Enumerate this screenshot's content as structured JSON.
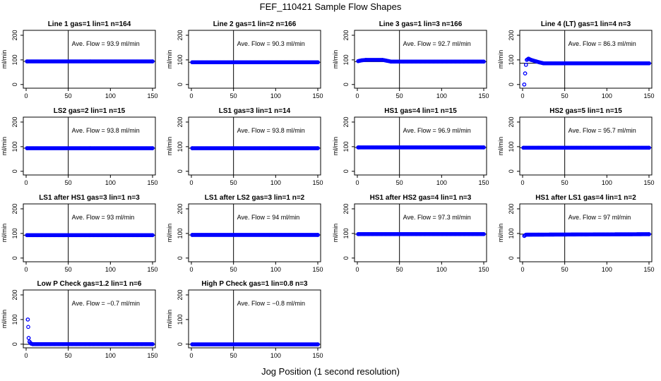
{
  "figure": {
    "title": "FEF_110421  Sample Flow Shapes",
    "xlabel": "Jog Position (1 second resolution)",
    "point_color": "#0000ff",
    "line_color": "#000000"
  },
  "chart_data": [
    {
      "type": "scatter",
      "title": "Line 1 gas=1 lin=1 n=164",
      "ylabel": "ml/min",
      "xlim": [
        0,
        150
      ],
      "ylim": [
        -15,
        220
      ],
      "xticks": [
        0,
        50,
        100,
        150
      ],
      "yticks": [
        0,
        100,
        200
      ],
      "hline": 93.9,
      "vline": 50,
      "annotation": "Ave. Flow =  93.9  ml/min",
      "x": [
        1,
        150
      ],
      "y": [
        93.9,
        93.9
      ]
    },
    {
      "type": "scatter",
      "title": "Line 2 gas=1 lin=2 n=166",
      "ylabel": "ml/min",
      "xlim": [
        0,
        150
      ],
      "ylim": [
        -15,
        220
      ],
      "xticks": [
        0,
        50,
        100,
        150
      ],
      "yticks": [
        0,
        100,
        200
      ],
      "hline": 90.3,
      "vline": 50,
      "annotation": "Ave. Flow =  90.3  ml/min",
      "x": [
        1,
        150
      ],
      "y": [
        90.3,
        90.3
      ]
    },
    {
      "type": "scatter",
      "title": "Line 3 gas=1 lin=3 n=166",
      "ylabel": "ml/min",
      "xlim": [
        0,
        150
      ],
      "ylim": [
        -15,
        220
      ],
      "xticks": [
        0,
        50,
        100,
        150
      ],
      "yticks": [
        0,
        100,
        200
      ],
      "hline": 92.7,
      "vline": 50,
      "annotation": "Ave. Flow =  92.7  ml/min",
      "x": [
        1,
        5,
        10,
        30,
        40,
        150
      ],
      "y": [
        95,
        98,
        100,
        100,
        93,
        93
      ]
    },
    {
      "type": "scatter",
      "title": "Line 4 (LT) gas=1 lin=4 n=3",
      "ylabel": "ml/min",
      "xlim": [
        0,
        150
      ],
      "ylim": [
        -15,
        220
      ],
      "xticks": [
        0,
        50,
        100,
        150
      ],
      "yticks": [
        0,
        100,
        200
      ],
      "hline": 86.3,
      "vline": 50,
      "annotation": "Ave. Flow =  86.3  ml/min",
      "x": [
        2,
        3,
        4,
        5,
        7,
        10,
        15,
        20,
        25,
        150
      ],
      "y": [
        0,
        45,
        80,
        100,
        105,
        100,
        95,
        90,
        86,
        86
      ]
    },
    {
      "type": "scatter",
      "title": "LS2 gas=2 lin=1 n=15",
      "ylabel": "ml/min",
      "xlim": [
        0,
        150
      ],
      "ylim": [
        -15,
        220
      ],
      "xticks": [
        0,
        50,
        100,
        150
      ],
      "yticks": [
        0,
        100,
        200
      ],
      "hline": 93.8,
      "vline": 50,
      "annotation": "Ave. Flow =  93.8  ml/min",
      "x": [
        1,
        150
      ],
      "y": [
        93.8,
        93.8
      ]
    },
    {
      "type": "scatter",
      "title": "LS1 gas=3 lin=1 n=14",
      "ylabel": "ml/min",
      "xlim": [
        0,
        150
      ],
      "ylim": [
        -15,
        220
      ],
      "xticks": [
        0,
        50,
        100,
        150
      ],
      "yticks": [
        0,
        100,
        200
      ],
      "hline": 93.8,
      "vline": 50,
      "annotation": "Ave. Flow =  93.8  ml/min",
      "x": [
        1,
        150
      ],
      "y": [
        93.8,
        93.8
      ]
    },
    {
      "type": "scatter",
      "title": "HS1 gas=4 lin=1 n=15",
      "ylabel": "ml/min",
      "xlim": [
        0,
        150
      ],
      "ylim": [
        -15,
        220
      ],
      "xticks": [
        0,
        50,
        100,
        150
      ],
      "yticks": [
        0,
        100,
        200
      ],
      "hline": 96.9,
      "vline": 50,
      "annotation": "Ave. Flow =  96.9  ml/min",
      "x": [
        1,
        150
      ],
      "y": [
        96.9,
        96.9
      ]
    },
    {
      "type": "scatter",
      "title": "HS2 gas=5 lin=1 n=15",
      "ylabel": "ml/min",
      "xlim": [
        0,
        150
      ],
      "ylim": [
        -15,
        220
      ],
      "xticks": [
        0,
        50,
        100,
        150
      ],
      "yticks": [
        0,
        100,
        200
      ],
      "hline": 95.7,
      "vline": 50,
      "annotation": "Ave. Flow =  95.7  ml/min",
      "x": [
        1,
        150
      ],
      "y": [
        95.7,
        95.7
      ]
    },
    {
      "type": "scatter",
      "title": "LS1 after HS1 gas=3 lin=1 n=3",
      "ylabel": "ml/min",
      "xlim": [
        0,
        150
      ],
      "ylim": [
        -15,
        220
      ],
      "xticks": [
        0,
        50,
        100,
        150
      ],
      "yticks": [
        0,
        100,
        200
      ],
      "hline": 93,
      "vline": 50,
      "annotation": "Ave. Flow =  93  ml/min",
      "x": [
        1,
        150
      ],
      "y": [
        93,
        93
      ]
    },
    {
      "type": "scatter",
      "title": "LS1 after LS2 gas=3 lin=1 n=2",
      "ylabel": "ml/min",
      "xlim": [
        0,
        150
      ],
      "ylim": [
        -15,
        220
      ],
      "xticks": [
        0,
        50,
        100,
        150
      ],
      "yticks": [
        0,
        100,
        200
      ],
      "hline": 94,
      "vline": 50,
      "annotation": "Ave. Flow =  94  ml/min",
      "x": [
        1,
        150
      ],
      "y": [
        94,
        94
      ]
    },
    {
      "type": "scatter",
      "title": "HS1 after HS2 gas=4 lin=1 n=3",
      "ylabel": "ml/min",
      "xlim": [
        0,
        150
      ],
      "ylim": [
        -15,
        220
      ],
      "xticks": [
        0,
        50,
        100,
        150
      ],
      "yticks": [
        0,
        100,
        200
      ],
      "hline": 97.3,
      "vline": 50,
      "annotation": "Ave. Flow =  97.3  ml/min",
      "x": [
        1,
        150
      ],
      "y": [
        97.3,
        97.3
      ]
    },
    {
      "type": "scatter",
      "title": "HS1 after LS1 gas=4 lin=1 n=2",
      "ylabel": "ml/min",
      "xlim": [
        0,
        150
      ],
      "ylim": [
        -15,
        220
      ],
      "xticks": [
        0,
        50,
        100,
        150
      ],
      "yticks": [
        0,
        100,
        200
      ],
      "hline": 97,
      "vline": 50,
      "annotation": "Ave. Flow =  97  ml/min",
      "x": [
        2,
        4,
        150
      ],
      "y": [
        90,
        95,
        97
      ]
    },
    {
      "type": "scatter",
      "title": "Low P Check gas=1.2 lin=1 n=6",
      "ylabel": "ml/min",
      "xlim": [
        0,
        150
      ],
      "ylim": [
        -15,
        220
      ],
      "xticks": [
        0,
        50,
        100,
        150
      ],
      "yticks": [
        0,
        100,
        200
      ],
      "hline": -0.7,
      "vline": 50,
      "annotation": "Ave. Flow =  −0.7  ml/min",
      "x": [
        2,
        2.5,
        3,
        4,
        5,
        6,
        8,
        150
      ],
      "y": [
        100,
        70,
        25,
        10,
        5,
        2,
        0,
        0
      ]
    },
    {
      "type": "scatter",
      "title": "High P Check gas=1 lin=0.8 n=3",
      "ylabel": "ml/min",
      "xlim": [
        0,
        150
      ],
      "ylim": [
        -15,
        220
      ],
      "xticks": [
        0,
        50,
        100,
        150
      ],
      "yticks": [
        0,
        100,
        200
      ],
      "hline": -0.8,
      "vline": 50,
      "annotation": "Ave. Flow =  −0.8  ml/min",
      "x": [
        1,
        150
      ],
      "y": [
        -0.8,
        -0.8
      ]
    }
  ]
}
